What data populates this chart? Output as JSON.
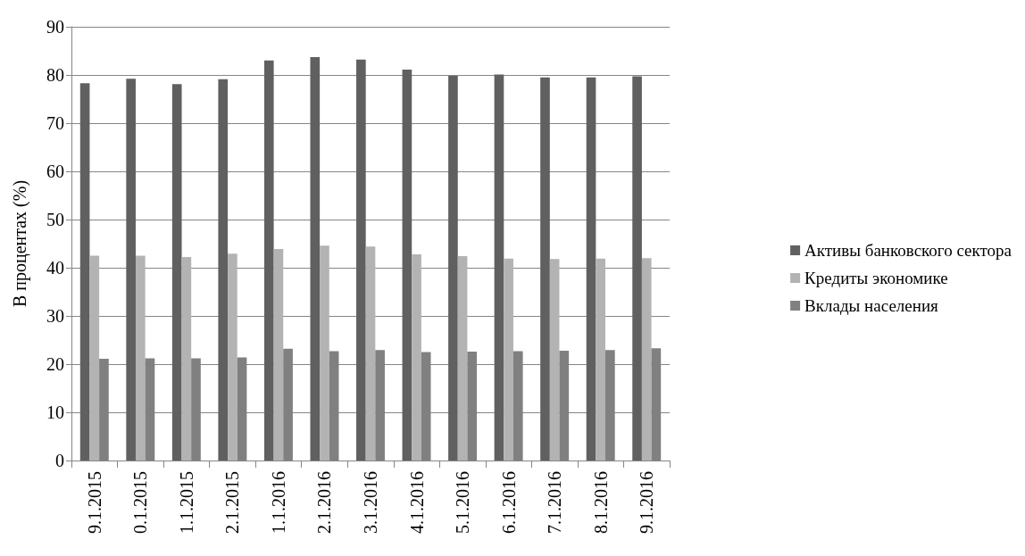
{
  "chart_data": {
    "type": "bar",
    "ylabel": "В процентах (%)",
    "categories": [
      "9.1.2015",
      "0.1.2015",
      "1.1.2015",
      "2.1.2015",
      "1.1.2016",
      "2.1.2016",
      "3.1.2016",
      "4.1.2016",
      "5.1.2016",
      "6.1.2016",
      "7.1.2016",
      "8.1.2016",
      "9.1.2016"
    ],
    "series": [
      {
        "name": "Активы банковского сектора",
        "color": "#606060",
        "values": [
          78.3,
          79.2,
          78.1,
          79.1,
          83.0,
          83.7,
          83.2,
          81.1,
          79.8,
          80.1,
          79.5,
          79.5,
          79.7
        ]
      },
      {
        "name": "Кредиты экономике",
        "color": "#b3b3b3",
        "values": [
          42.5,
          42.5,
          42.2,
          42.9,
          43.9,
          44.6,
          44.4,
          42.8,
          42.4,
          41.9,
          41.8,
          41.9,
          42.0
        ]
      },
      {
        "name": "Вклады населения",
        "color": "#808080",
        "values": [
          21.1,
          21.2,
          21.2,
          21.4,
          23.2,
          22.7,
          22.9,
          22.5,
          22.6,
          22.7,
          22.8,
          22.9,
          23.3
        ]
      }
    ],
    "ylim": [
      0,
      90
    ],
    "yticks": [
      0,
      10,
      20,
      30,
      40,
      50,
      60,
      70,
      80,
      90
    ],
    "grid": "y",
    "legend": "right"
  }
}
